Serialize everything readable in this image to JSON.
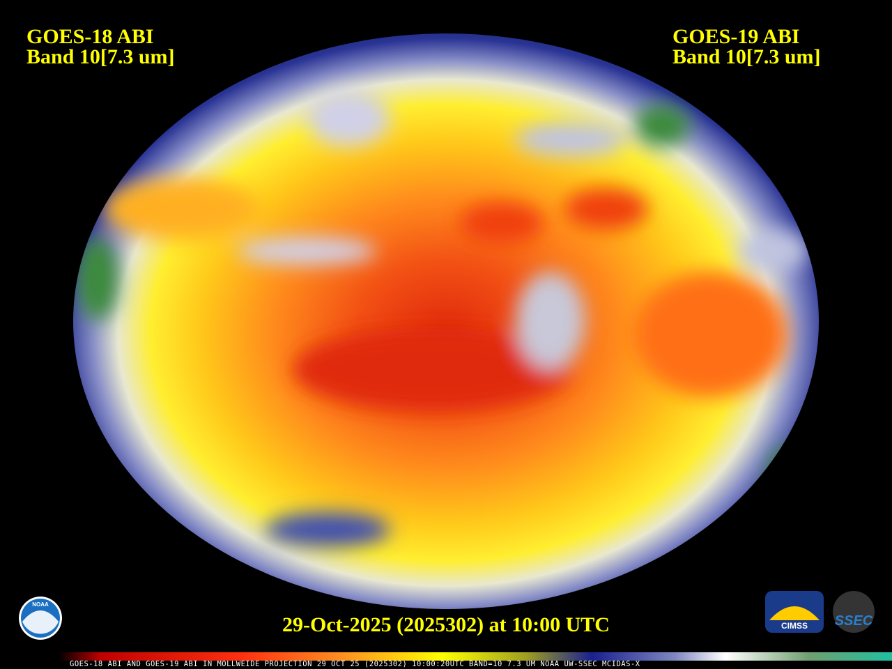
{
  "header": {
    "left": {
      "line1": "GOES-18 ABI",
      "line2": "Band 10[7.3 um]"
    },
    "right": {
      "line1": "GOES-19 ABI",
      "line2": "Band 10[7.3 um]"
    }
  },
  "timestamp": "29-Oct-2025 (2025302) at 10:00 UTC",
  "footer": "GOES-18 ABI AND GOES-19 ABI IN MOLLWEIDE PROJECTION 29 OCT 25 (2025302) 10:00:20UTC BAND=10 7.3 UM NOAA UW-SSEC MCIDAS-X",
  "logos": {
    "noaa": "NOAA",
    "cimss": "CIMSS",
    "ssec": "SSEC"
  }
}
